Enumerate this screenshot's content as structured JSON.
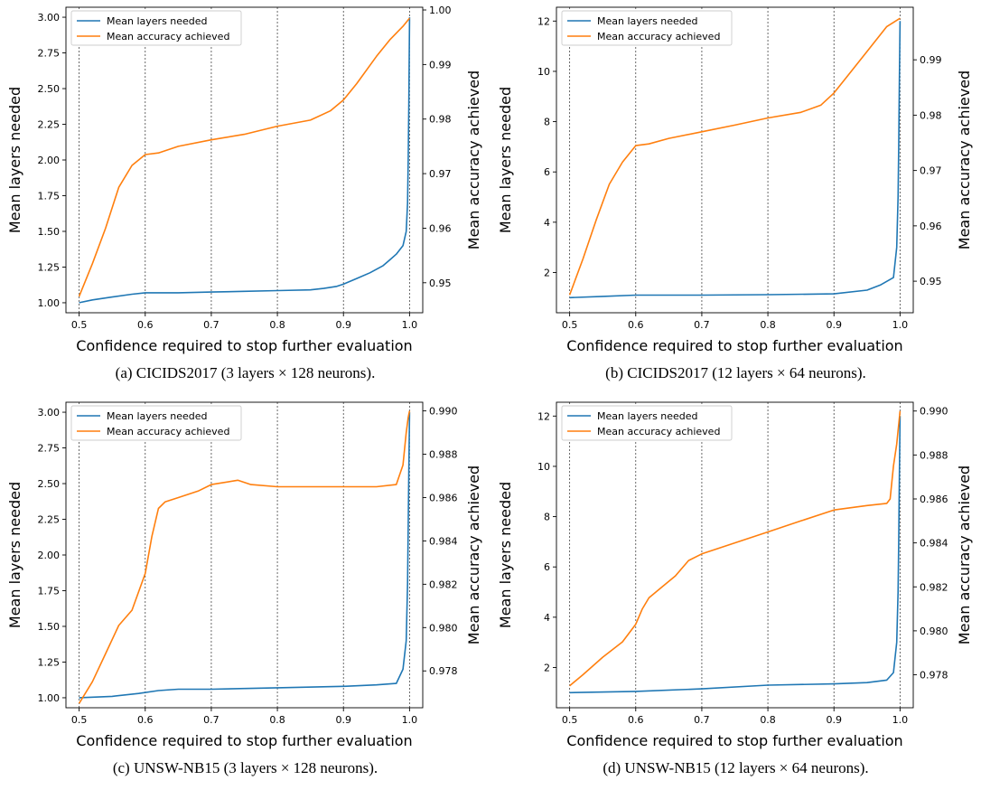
{
  "colors": {
    "layers": "#1f77b4",
    "accuracy": "#ff7f0e",
    "grid": "#444444"
  },
  "chart_data": [
    {
      "id": "a",
      "type": "line",
      "caption": "(a) CICIDS2017 (3 layers × 128 neurons).",
      "xlabel": "Confidence required to stop further evaluation",
      "ylabel": "Mean layers needed",
      "y2label": "Mean accuracy achieved",
      "xlim": [
        0.48,
        1.02
      ],
      "ylim": [
        0.93,
        3.07
      ],
      "y2lim": [
        0.9445,
        1.0005
      ],
      "xticks": [
        "0.5",
        "0.6",
        "0.7",
        "0.8",
        "0.9",
        "1.0"
      ],
      "yticks": [
        "1.00",
        "1.25",
        "1.50",
        "1.75",
        "2.00",
        "2.25",
        "2.50",
        "2.75",
        "3.00"
      ],
      "y2ticks": [
        "0.95",
        "0.96",
        "0.97",
        "0.98",
        "0.99",
        "1.00"
      ],
      "grid": "x-dotted",
      "legend_position": "top-left",
      "series": [
        {
          "name": "Mean layers needed",
          "axis": "left",
          "x": [
            0.5,
            0.52,
            0.55,
            0.58,
            0.6,
            0.65,
            0.7,
            0.75,
            0.8,
            0.85,
            0.87,
            0.89,
            0.9,
            0.92,
            0.94,
            0.96,
            0.97,
            0.98,
            0.99,
            0.995,
            0.997,
            0.998,
            0.999,
            1.0
          ],
          "y": [
            1.0,
            1.02,
            1.04,
            1.06,
            1.07,
            1.07,
            1.075,
            1.08,
            1.085,
            1.09,
            1.1,
            1.115,
            1.13,
            1.17,
            1.21,
            1.26,
            1.3,
            1.34,
            1.4,
            1.5,
            1.7,
            2.0,
            2.4,
            3.0
          ]
        },
        {
          "name": "Mean accuracy achieved",
          "axis": "right",
          "x": [
            0.5,
            0.52,
            0.54,
            0.56,
            0.58,
            0.6,
            0.62,
            0.65,
            0.7,
            0.75,
            0.8,
            0.85,
            0.88,
            0.9,
            0.92,
            0.95,
            0.97,
            0.99,
            1.0
          ],
          "y": [
            0.9475,
            0.9535,
            0.96,
            0.9675,
            0.9715,
            0.9735,
            0.9738,
            0.975,
            0.9762,
            0.9772,
            0.9787,
            0.9798,
            0.9815,
            0.9835,
            0.9865,
            0.9915,
            0.9945,
            0.997,
            0.9985
          ]
        }
      ]
    },
    {
      "id": "b",
      "type": "line",
      "caption": "(b) CICIDS2017 (12 layers × 64 neurons).",
      "xlabel": "Confidence required to stop further evaluation",
      "ylabel": "Mean layers needed",
      "y2label": "Mean accuracy achieved",
      "xlim": [
        0.48,
        1.02
      ],
      "ylim": [
        0.4,
        12.55
      ],
      "y2lim": [
        0.9443,
        0.9995
      ],
      "xticks": [
        "0.5",
        "0.6",
        "0.7",
        "0.8",
        "0.9",
        "1.0"
      ],
      "yticks": [
        "2",
        "4",
        "6",
        "8",
        "10",
        "12"
      ],
      "y2ticks": [
        "0.95",
        "0.96",
        "0.97",
        "0.98",
        "0.99"
      ],
      "grid": "x-dotted",
      "legend_position": "top-left",
      "series": [
        {
          "name": "Mean layers needed",
          "axis": "left",
          "x": [
            0.5,
            0.55,
            0.6,
            0.7,
            0.8,
            0.9,
            0.95,
            0.97,
            0.99,
            0.995,
            0.997,
            0.998,
            0.999,
            1.0
          ],
          "y": [
            1.0,
            1.05,
            1.1,
            1.1,
            1.12,
            1.15,
            1.3,
            1.5,
            1.8,
            3.0,
            5.0,
            7.0,
            9.5,
            12.0
          ]
        },
        {
          "name": "Mean accuracy achieved",
          "axis": "right",
          "x": [
            0.5,
            0.52,
            0.54,
            0.56,
            0.58,
            0.6,
            0.62,
            0.65,
            0.7,
            0.75,
            0.8,
            0.85,
            0.88,
            0.9,
            0.92,
            0.95,
            0.98,
            1.0
          ],
          "y": [
            0.9475,
            0.954,
            0.961,
            0.9675,
            0.9715,
            0.9745,
            0.9748,
            0.9758,
            0.977,
            0.9782,
            0.9795,
            0.9805,
            0.9818,
            0.984,
            0.987,
            0.9915,
            0.996,
            0.9975
          ]
        }
      ]
    },
    {
      "id": "c",
      "type": "line",
      "caption": "(c) UNSW-NB15 (3 layers × 128 neurons).",
      "xlabel": "Confidence required to stop further evaluation",
      "ylabel": "Mean layers needed",
      "y2label": "Mean accuracy achieved",
      "xlim": [
        0.48,
        1.02
      ],
      "ylim": [
        0.93,
        3.07
      ],
      "y2lim": [
        0.9763,
        0.9904
      ],
      "xticks": [
        "0.5",
        "0.6",
        "0.7",
        "0.8",
        "0.9",
        "1.0"
      ],
      "yticks": [
        "1.00",
        "1.25",
        "1.50",
        "1.75",
        "2.00",
        "2.25",
        "2.50",
        "2.75",
        "3.00"
      ],
      "y2ticks": [
        "0.978",
        "0.980",
        "0.982",
        "0.984",
        "0.986",
        "0.988",
        "0.990"
      ],
      "grid": "x-dotted",
      "legend_position": "top-left",
      "series": [
        {
          "name": "Mean layers needed",
          "axis": "left",
          "x": [
            0.5,
            0.55,
            0.59,
            0.62,
            0.65,
            0.7,
            0.8,
            0.9,
            0.95,
            0.98,
            0.99,
            0.995,
            0.997,
            0.998,
            0.999,
            1.0
          ],
          "y": [
            1.0,
            1.01,
            1.03,
            1.05,
            1.06,
            1.06,
            1.07,
            1.08,
            1.09,
            1.1,
            1.2,
            1.4,
            1.8,
            2.2,
            2.6,
            3.0
          ]
        },
        {
          "name": "Mean accuracy achieved",
          "axis": "right",
          "x": [
            0.5,
            0.52,
            0.54,
            0.56,
            0.58,
            0.6,
            0.61,
            0.62,
            0.63,
            0.65,
            0.68,
            0.7,
            0.74,
            0.76,
            0.8,
            0.85,
            0.9,
            0.95,
            0.98,
            0.99,
            0.995,
            0.998,
            1.0
          ],
          "y": [
            0.9765,
            0.9775,
            0.9788,
            0.9801,
            0.9808,
            0.9825,
            0.9842,
            0.9855,
            0.9858,
            0.986,
            0.9863,
            0.9866,
            0.9868,
            0.9866,
            0.9865,
            0.9865,
            0.9865,
            0.9865,
            0.9866,
            0.9875,
            0.989,
            0.9897,
            0.99
          ]
        }
      ]
    },
    {
      "id": "d",
      "type": "line",
      "caption": "(d) UNSW-NB15 (12 layers × 64 neurons).",
      "xlabel": "Confidence required to stop further evaluation",
      "ylabel": "Mean layers needed",
      "y2label": "Mean accuracy achieved",
      "xlim": [
        0.48,
        1.02
      ],
      "ylim": [
        0.4,
        12.55
      ],
      "y2lim": [
        0.9765,
        0.9904
      ],
      "xticks": [
        "0.5",
        "0.6",
        "0.7",
        "0.8",
        "0.9",
        "1.0"
      ],
      "yticks": [
        "2",
        "4",
        "6",
        "8",
        "10",
        "12"
      ],
      "y2ticks": [
        "0.978",
        "0.980",
        "0.982",
        "0.984",
        "0.986",
        "0.988",
        "0.990"
      ],
      "grid": "x-dotted",
      "legend_position": "top-left",
      "series": [
        {
          "name": "Mean layers needed",
          "axis": "left",
          "x": [
            0.5,
            0.6,
            0.7,
            0.8,
            0.9,
            0.95,
            0.98,
            0.99,
            0.995,
            0.997,
            0.998,
            0.999,
            1.0
          ],
          "y": [
            1.0,
            1.05,
            1.15,
            1.3,
            1.35,
            1.4,
            1.5,
            1.8,
            3.0,
            5.0,
            7.0,
            9.5,
            12.0
          ]
        },
        {
          "name": "Mean accuracy achieved",
          "axis": "right",
          "x": [
            0.5,
            0.52,
            0.55,
            0.58,
            0.6,
            0.61,
            0.62,
            0.64,
            0.66,
            0.68,
            0.7,
            0.75,
            0.8,
            0.85,
            0.9,
            0.95,
            0.98,
            0.985,
            0.99,
            0.995,
            1.0
          ],
          "y": [
            0.9775,
            0.978,
            0.9788,
            0.9795,
            0.9803,
            0.981,
            0.9815,
            0.982,
            0.9825,
            0.9832,
            0.9835,
            0.984,
            0.9845,
            0.985,
            0.9855,
            0.9857,
            0.9858,
            0.986,
            0.9875,
            0.9885,
            0.99
          ]
        }
      ]
    }
  ]
}
